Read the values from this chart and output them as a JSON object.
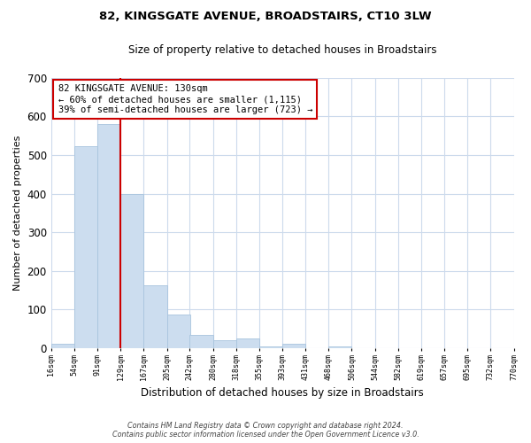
{
  "title": "82, KINGSGATE AVENUE, BROADSTAIRS, CT10 3LW",
  "subtitle": "Size of property relative to detached houses in Broadstairs",
  "xlabel": "Distribution of detached houses by size in Broadstairs",
  "ylabel": "Number of detached properties",
  "bar_left_edges": [
    16,
    54,
    91,
    129,
    167,
    205,
    242,
    280,
    318,
    355,
    393,
    431,
    468,
    506,
    544,
    582,
    619,
    657,
    695,
    732
  ],
  "bar_heights": [
    12,
    522,
    580,
    400,
    163,
    87,
    35,
    22,
    25,
    4,
    12,
    0,
    4,
    0,
    0,
    0,
    0,
    0,
    0,
    0
  ],
  "bin_width": 38,
  "bar_color": "#ccddef",
  "bar_edge_color": "#a8c4de",
  "property_line_x": 129,
  "property_line_color": "#cc0000",
  "ylim": [
    0,
    700
  ],
  "yticks": [
    0,
    100,
    200,
    300,
    400,
    500,
    600,
    700
  ],
  "xtick_labels": [
    "16sqm",
    "54sqm",
    "91sqm",
    "129sqm",
    "167sqm",
    "205sqm",
    "242sqm",
    "280sqm",
    "318sqm",
    "355sqm",
    "393sqm",
    "431sqm",
    "468sqm",
    "506sqm",
    "544sqm",
    "582sqm",
    "619sqm",
    "657sqm",
    "695sqm",
    "732sqm",
    "770sqm"
  ],
  "annotation_box_text_line1": "82 KINGSGATE AVENUE: 130sqm",
  "annotation_box_text_line2": "← 60% of detached houses are smaller (1,115)",
  "annotation_box_text_line3": "39% of semi-detached houses are larger (723) →",
  "annotation_box_color": "#cc0000",
  "background_color": "#ffffff",
  "grid_color": "#ccdaec",
  "footer_line1": "Contains HM Land Registry data © Crown copyright and database right 2024.",
  "footer_line2": "Contains public sector information licensed under the Open Government Licence v3.0."
}
